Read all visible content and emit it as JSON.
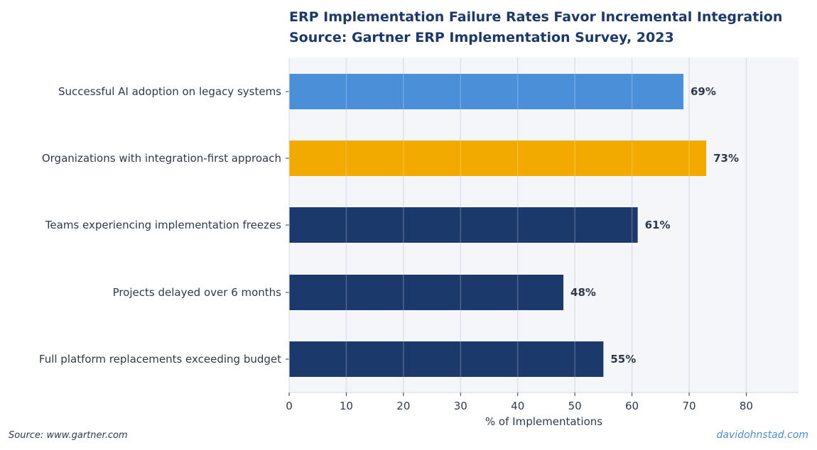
{
  "chart_data": {
    "type": "bar",
    "orientation": "horizontal",
    "title": "ERP Implementation Failure Rates Favor Incremental Integration",
    "subtitle": "Source: Gartner ERP Implementation Survey, 2023",
    "xlabel": "% of Implementations",
    "ylabel": "",
    "xlim": [
      0,
      89
    ],
    "xticks": [
      0,
      10,
      20,
      30,
      40,
      50,
      60,
      70,
      80
    ],
    "grid": true,
    "categories": [
      "Successful AI adoption on legacy systems",
      "Organizations with integration-first approach",
      "Teams experiencing implementation freezes",
      "Projects delayed over 6 months",
      "Full platform replacements exceeding budget"
    ],
    "values": [
      69,
      73,
      61,
      48,
      55
    ],
    "value_labels": [
      "69%",
      "73%",
      "61%",
      "48%",
      "55%"
    ],
    "colors": [
      "#4a8fd8",
      "#f2a900",
      "#1b3a6b",
      "#1b3a6b",
      "#1b3a6b"
    ],
    "plot_background": "#f4f6fa",
    "grid_color": "#dde1e8"
  },
  "footer": {
    "source": "Source: www.gartner.com",
    "credit": "davidohnstad.com"
  }
}
